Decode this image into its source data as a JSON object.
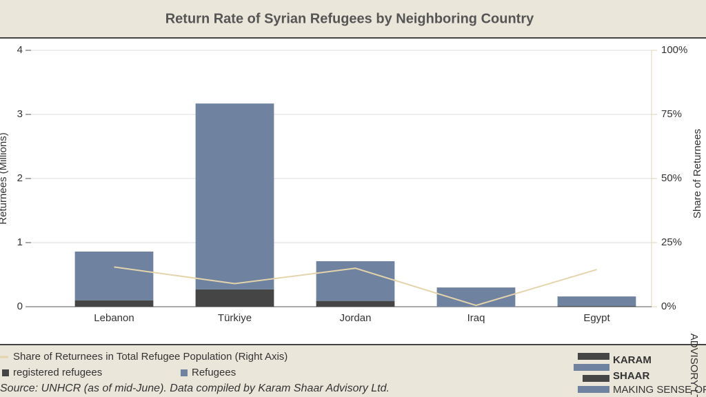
{
  "chart_data": {
    "type": "bar",
    "title": "Return Rate of Syrian Refugees by Neighboring Country",
    "categories": [
      "Lebanon",
      "Türkiye",
      "Jordan",
      "Iraq",
      "Egypt"
    ],
    "series": [
      {
        "name": "registered refugees",
        "color": "#454545",
        "values": [
          0.1,
          0.27,
          0.09,
          0,
          0.01
        ]
      },
      {
        "name": "Refugees",
        "color": "#6f82a0",
        "values": [
          0.76,
          2.9,
          0.62,
          0.3,
          0.15
        ]
      },
      {
        "name": "Share of Returnees in Total Refugee Population (Right Axis)",
        "color": "#e4d4ac",
        "type": "line",
        "axis": "y2",
        "values": [
          15.5,
          9,
          15,
          0.5,
          14.5
        ]
      }
    ],
    "stacked": true,
    "ylabel": "Returnees (Millions)",
    "y2label": "Share of Returnees",
    "ylim": [
      0,
      4
    ],
    "yticks": [
      0,
      1,
      2,
      3,
      4
    ],
    "y2lim": [
      0,
      100
    ],
    "y2ticks": [
      {
        "value": 0,
        "label": "0%"
      },
      {
        "value": 25,
        "label": "25%"
      },
      {
        "value": 50,
        "label": "50%"
      },
      {
        "value": 75,
        "label": "75%"
      },
      {
        "value": 100,
        "label": "100%"
      }
    ],
    "grid": true,
    "source": "Source: UNHCR (as of mid-June). Data compiled by Karam Shaar Advisory Ltd."
  },
  "branding": {
    "name_top": "KARAM",
    "name_bottom": "SHAAR",
    "tagline": "MAKING SENSE OF SYRIA'S ECONOMY",
    "suffix": "ADVISORY LTD."
  }
}
